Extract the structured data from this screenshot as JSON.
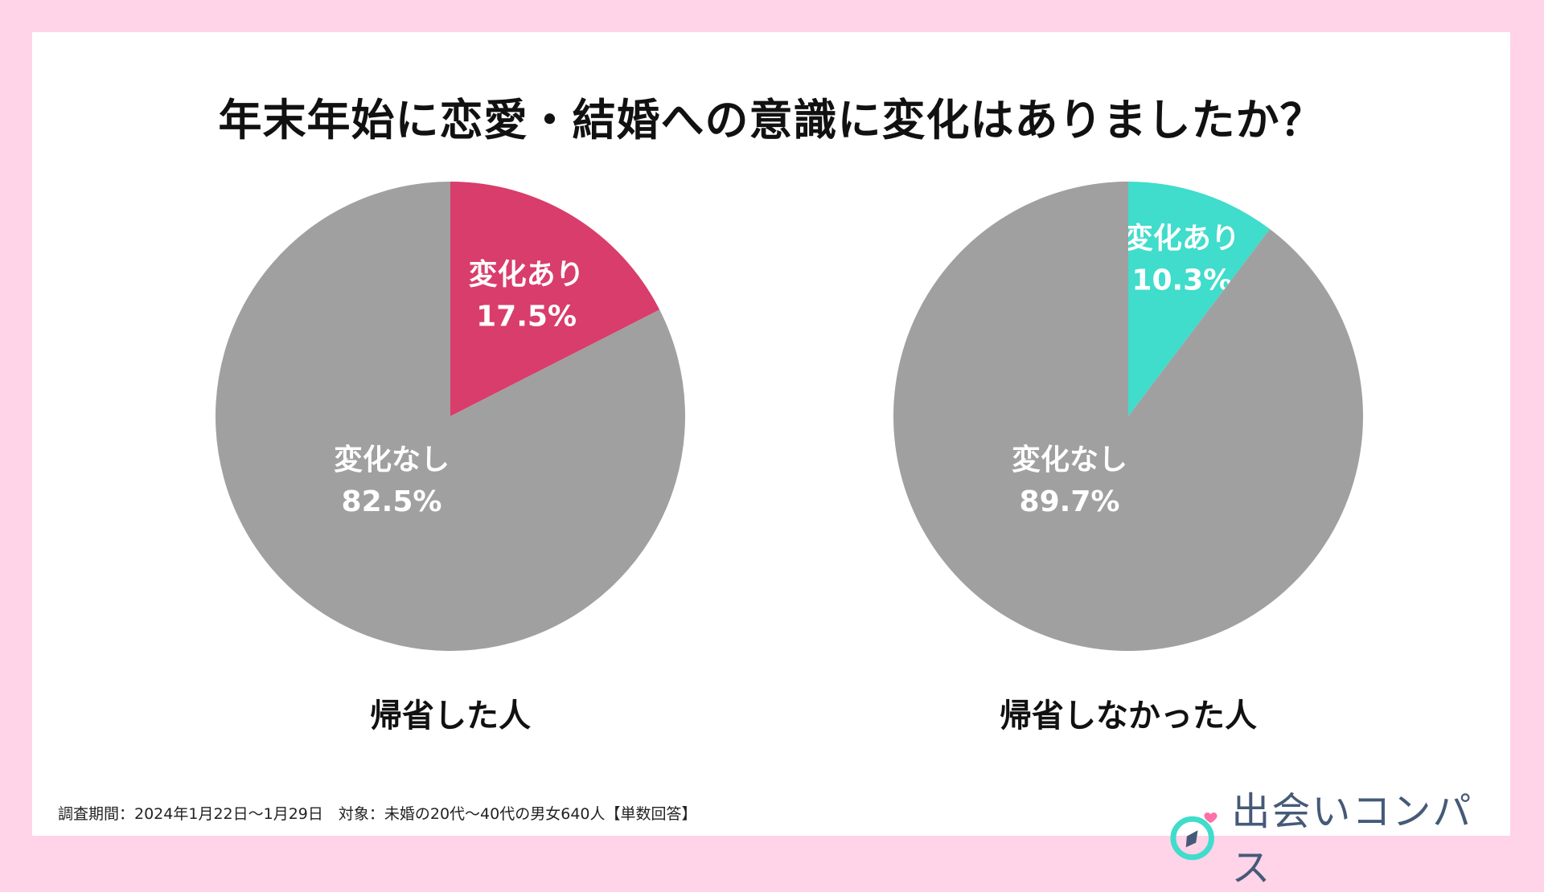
{
  "title": "年末年始に恋愛・結婚への意識に変化はありましたか？",
  "footnote": "調査期間：2024年1月22日〜1月29日　対象：未婚の20代〜40代の男女640人【単数回答】",
  "logo": {
    "text": "出会いコンパス",
    "icon": "compass-heart-icon"
  },
  "chart_data": [
    {
      "type": "pie",
      "group_label": "帰省した人",
      "slices": [
        {
          "name": "変化あり",
          "value": 17.5,
          "label": "17.5%",
          "color": "#d93d6b"
        },
        {
          "name": "変化なし",
          "value": 82.5,
          "label": "82.5%",
          "color": "#a0a0a0"
        }
      ]
    },
    {
      "type": "pie",
      "group_label": "帰省しなかった人",
      "slices": [
        {
          "name": "変化あり",
          "value": 10.3,
          "label": "10.3%",
          "color": "#40dccc"
        },
        {
          "name": "変化なし",
          "value": 89.7,
          "label": "89.7%",
          "color": "#a0a0a0"
        }
      ]
    }
  ]
}
